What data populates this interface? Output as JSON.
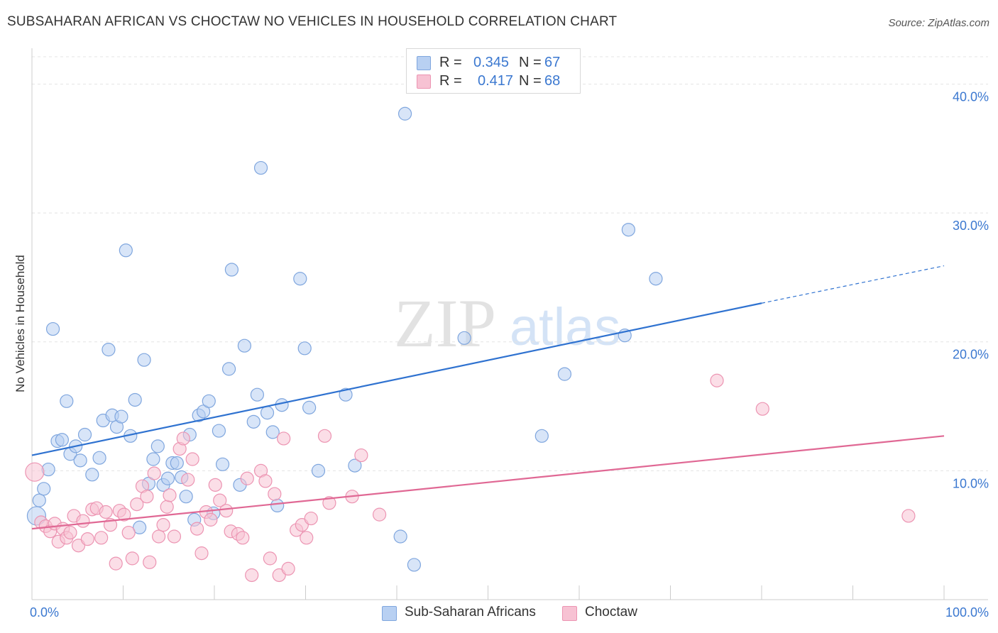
{
  "title": "SUBSAHARAN AFRICAN VS CHOCTAW NO VEHICLES IN HOUSEHOLD CORRELATION CHART",
  "source": "Source: ZipAtlas.com",
  "watermark": {
    "zip": "ZIP",
    "atlas": "atlas"
  },
  "legend": {
    "r_label": "R =",
    "n_label": "N =",
    "series": [
      {
        "r": "0.345",
        "n": "67"
      },
      {
        "r": "0.417",
        "n": "68"
      }
    ]
  },
  "colors": {
    "blue_fill": "#b8d0f2",
    "blue_stroke": "#7fa6de",
    "blue_line": "#2f72d0",
    "blue_text": "#3b78d0",
    "pink_fill": "#f7c2d3",
    "pink_stroke": "#ec94b2",
    "pink_line": "#e06894",
    "pink_text": "#3b78d0"
  },
  "chart_data": {
    "type": "scatter",
    "xlabel": "",
    "ylabel": "No Vehicles in Household",
    "xlim": [
      0,
      100
    ],
    "ylim": [
      0,
      40
    ],
    "x_tick_labels": [
      "0.0%",
      "100.0%"
    ],
    "y_ticks": [
      10,
      20,
      30,
      40
    ],
    "y_tick_labels": [
      "10.0%",
      "20.0%",
      "30.0%",
      "40.0%"
    ],
    "grid": true,
    "legend_position": "bottom",
    "series": [
      {
        "name": "Sub-Saharan Africans",
        "color": "#b8d0f2",
        "trend": {
          "x0": 0,
          "y0": 11.2,
          "x1": 80,
          "y1": 23.0,
          "dash_to_x": 100,
          "dash_to_y": 25.9
        },
        "points": [
          [
            0.5,
            6.5
          ],
          [
            0.8,
            7.7
          ],
          [
            1.3,
            8.6
          ],
          [
            1.8,
            10.1
          ],
          [
            2.3,
            21.0
          ],
          [
            2.8,
            12.3
          ],
          [
            3.3,
            12.4
          ],
          [
            3.8,
            15.4
          ],
          [
            4.2,
            11.3
          ],
          [
            4.8,
            11.9
          ],
          [
            5.3,
            10.8
          ],
          [
            5.8,
            12.8
          ],
          [
            6.6,
            9.7
          ],
          [
            7.4,
            11.0
          ],
          [
            7.8,
            13.9
          ],
          [
            8.4,
            19.4
          ],
          [
            8.8,
            14.3
          ],
          [
            9.3,
            13.4
          ],
          [
            9.8,
            14.2
          ],
          [
            10.3,
            27.1
          ],
          [
            10.8,
            12.7
          ],
          [
            11.3,
            15.5
          ],
          [
            11.8,
            5.6
          ],
          [
            12.3,
            18.6
          ],
          [
            12.8,
            9.0
          ],
          [
            13.3,
            10.9
          ],
          [
            13.8,
            11.9
          ],
          [
            14.4,
            8.9
          ],
          [
            14.9,
            9.4
          ],
          [
            15.4,
            10.6
          ],
          [
            15.9,
            10.6
          ],
          [
            16.4,
            9.5
          ],
          [
            16.9,
            8.0
          ],
          [
            17.3,
            12.8
          ],
          [
            17.8,
            6.2
          ],
          [
            18.3,
            14.3
          ],
          [
            18.8,
            14.6
          ],
          [
            19.4,
            15.4
          ],
          [
            19.9,
            6.7
          ],
          [
            20.5,
            13.1
          ],
          [
            20.9,
            10.5
          ],
          [
            21.6,
            17.9
          ],
          [
            21.9,
            25.6
          ],
          [
            22.8,
            8.9
          ],
          [
            23.3,
            19.7
          ],
          [
            24.3,
            13.8
          ],
          [
            24.7,
            15.9
          ],
          [
            25.1,
            33.5
          ],
          [
            25.8,
            14.5
          ],
          [
            26.4,
            13.0
          ],
          [
            26.9,
            7.3
          ],
          [
            27.4,
            15.1
          ],
          [
            29.4,
            24.9
          ],
          [
            29.9,
            19.5
          ],
          [
            30.4,
            14.9
          ],
          [
            31.4,
            10.0
          ],
          [
            34.4,
            15.9
          ],
          [
            35.4,
            10.4
          ],
          [
            40.4,
            4.9
          ],
          [
            40.9,
            37.7
          ],
          [
            41.9,
            2.7
          ],
          [
            47.4,
            20.3
          ],
          [
            55.9,
            12.7
          ],
          [
            58.4,
            17.5
          ],
          [
            65.4,
            28.7
          ],
          [
            68.4,
            24.9
          ],
          [
            65.0,
            20.5
          ]
        ]
      },
      {
        "name": "Choctaw",
        "color": "#f7c2d3",
        "trend": {
          "x0": 0,
          "y0": 5.5,
          "x1": 100,
          "y1": 12.7
        },
        "points": [
          [
            0.3,
            9.9
          ],
          [
            1.0,
            6.0
          ],
          [
            1.5,
            5.7
          ],
          [
            2.0,
            5.3
          ],
          [
            2.5,
            5.9
          ],
          [
            2.9,
            4.5
          ],
          [
            3.4,
            5.5
          ],
          [
            3.8,
            4.8
          ],
          [
            4.2,
            5.2
          ],
          [
            4.6,
            6.5
          ],
          [
            5.1,
            4.2
          ],
          [
            5.6,
            6.1
          ],
          [
            6.1,
            4.7
          ],
          [
            6.6,
            7.0
          ],
          [
            7.1,
            7.1
          ],
          [
            7.6,
            4.8
          ],
          [
            8.1,
            6.8
          ],
          [
            8.6,
            5.8
          ],
          [
            9.2,
            2.8
          ],
          [
            9.6,
            6.9
          ],
          [
            10.1,
            6.6
          ],
          [
            10.6,
            5.2
          ],
          [
            11.0,
            3.2
          ],
          [
            11.5,
            7.4
          ],
          [
            12.1,
            8.8
          ],
          [
            12.6,
            8.0
          ],
          [
            12.9,
            2.9
          ],
          [
            13.4,
            9.8
          ],
          [
            13.9,
            4.9
          ],
          [
            14.4,
            5.8
          ],
          [
            14.8,
            7.2
          ],
          [
            15.1,
            8.1
          ],
          [
            15.6,
            4.9
          ],
          [
            16.2,
            11.7
          ],
          [
            16.6,
            12.5
          ],
          [
            17.1,
            9.3
          ],
          [
            17.6,
            10.9
          ],
          [
            18.1,
            5.5
          ],
          [
            18.6,
            3.6
          ],
          [
            19.1,
            6.8
          ],
          [
            19.6,
            6.2
          ],
          [
            20.1,
            8.9
          ],
          [
            20.6,
            7.7
          ],
          [
            21.3,
            6.9
          ],
          [
            21.8,
            5.3
          ],
          [
            22.6,
            5.1
          ],
          [
            23.1,
            4.8
          ],
          [
            23.6,
            9.4
          ],
          [
            24.1,
            1.9
          ],
          [
            25.1,
            10.0
          ],
          [
            25.6,
            9.2
          ],
          [
            26.1,
            3.2
          ],
          [
            26.6,
            8.2
          ],
          [
            27.1,
            1.9
          ],
          [
            27.6,
            12.5
          ],
          [
            28.1,
            2.4
          ],
          [
            29.0,
            5.4
          ],
          [
            29.6,
            5.8
          ],
          [
            30.1,
            4.8
          ],
          [
            30.6,
            6.3
          ],
          [
            32.1,
            12.7
          ],
          [
            32.6,
            7.5
          ],
          [
            35.1,
            8.0
          ],
          [
            36.1,
            11.2
          ],
          [
            38.1,
            6.6
          ],
          [
            75.1,
            17.0
          ],
          [
            80.1,
            14.8
          ],
          [
            96.1,
            6.5
          ]
        ]
      }
    ]
  }
}
